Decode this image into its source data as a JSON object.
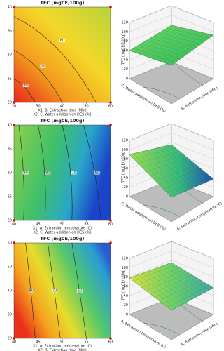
{
  "chart_data": [
    {
      "type": "contour",
      "title": "TFC (mgCE/100g)",
      "x_label": "X1: B: Extraction time (Min)",
      "y_label": "X2: C: Water addition on DES (%)",
      "xlim": [
        20,
        60
      ],
      "xticks": [
        20,
        30,
        40,
        50,
        60
      ],
      "ylim": [
        20,
        40
      ],
      "yticks": [
        20,
        25,
        30,
        35,
        40
      ],
      "contours": [
        80,
        70,
        60
      ]
    },
    {
      "type": "surface",
      "z_label": "TFC (mgCE/100g)",
      "x_label": "B: Extraction time (Min)",
      "y_label": "C: Water addition on DES (%)",
      "zlim": [
        0,
        120
      ],
      "zticks": [
        0,
        20,
        40,
        60,
        80,
        100,
        120
      ]
    },
    {
      "type": "contour",
      "title": "TFC (mgCE/100g)",
      "x_label": "X1: A: Extraction temperature (C)",
      "y_label": "X2: C: Water addition on DES (%)",
      "xlim": [
        40,
        60
      ],
      "xticks": [
        40,
        45,
        50,
        55,
        60
      ],
      "ylim": [
        20,
        40
      ],
      "yticks": [
        20,
        25,
        30,
        35,
        40
      ],
      "contours": [
        90,
        80,
        70,
        60
      ]
    },
    {
      "type": "surface",
      "z_label": "TFC (mgCE/100g)",
      "x_label": "A: Extraction temperature (C)",
      "y_label": "C: Water addition on DES (%)",
      "zlim": [
        0,
        120
      ],
      "zticks": [
        0,
        20,
        40,
        60,
        80,
        100,
        120
      ]
    },
    {
      "type": "contour",
      "title": "TFC (mgCE/100g)",
      "x_label": "X1: A: Extraction temperature (C)",
      "y_label": "X2: B: Extraction time (Min)",
      "xlim": [
        40,
        60
      ],
      "xticks": [
        40,
        45,
        50,
        55,
        60
      ],
      "ylim": [
        20,
        60
      ],
      "yticks": [
        20,
        30,
        40,
        50,
        60
      ],
      "contours": [
        80,
        70,
        60
      ]
    },
    {
      "type": "surface",
      "z_label": "TFC (mgCE/100g)",
      "x_label": "B: Extraction time (Min)",
      "y_label": "A: Extraction temperature (C)",
      "zlim": [
        0,
        120
      ],
      "zticks": [
        0,
        20,
        40,
        60,
        80,
        100,
        120
      ]
    }
  ]
}
